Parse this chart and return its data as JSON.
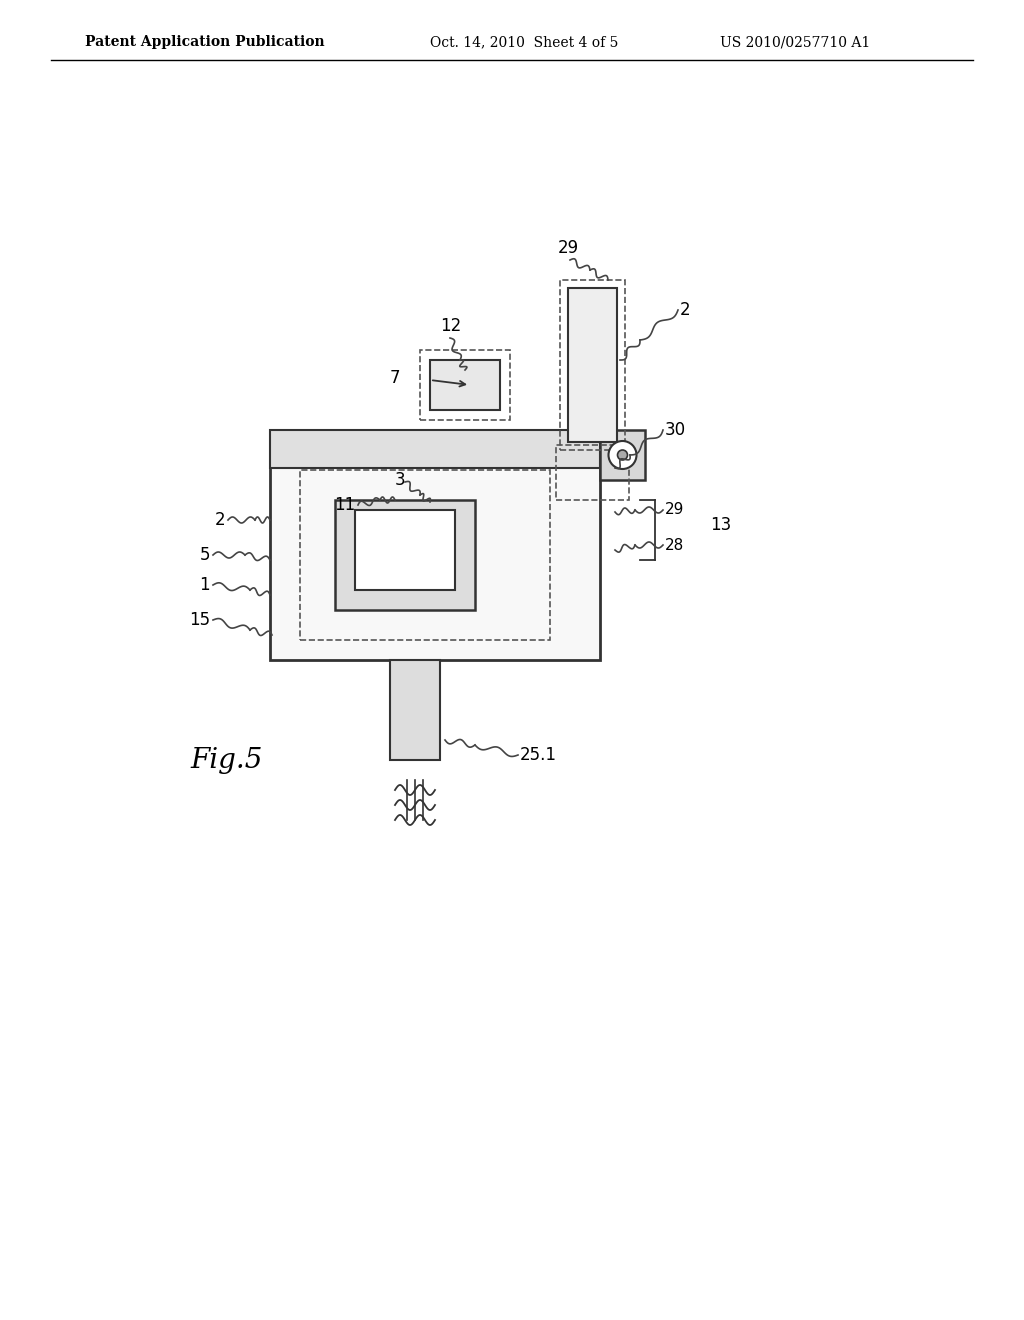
{
  "bg_color": "#ffffff",
  "header_left": "Patent Application Publication",
  "header_mid": "Oct. 14, 2010  Sheet 4 of 5",
  "header_right": "US 2010/0257710 A1",
  "fig_label": "Fig.5",
  "labels": {
    "2_top": "2",
    "2_main": "2",
    "29_top": "29",
    "29_side": "29",
    "30": "30",
    "12": "12",
    "7": "7",
    "3": "3",
    "11": "11",
    "5": "5",
    "1": "1",
    "15": "15",
    "13": "13",
    "28": "28",
    "25_1": "25.1"
  },
  "line_color": "#333333",
  "dashed_color": "#555555"
}
